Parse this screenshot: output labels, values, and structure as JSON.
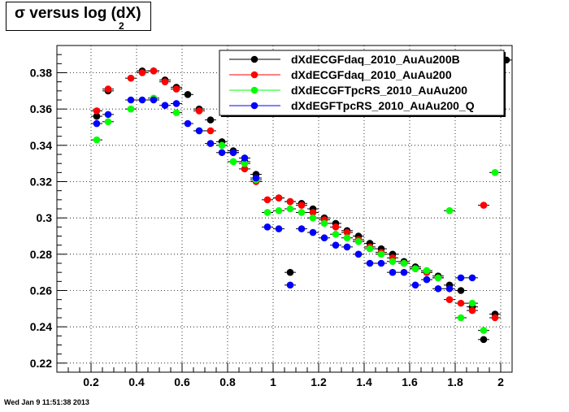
{
  "title": {
    "main": "σ versus log (dX)",
    "subscript": "2"
  },
  "timestamp": "Wed Jan  9 11:51:38 2013",
  "chart_data": {
    "type": "scatter",
    "xlim": [
      0.05,
      2.05
    ],
    "ylim": [
      0.215,
      0.395
    ],
    "xticks": [
      0.2,
      0.4,
      0.6,
      0.8,
      1,
      1.2,
      1.4,
      1.6,
      1.8,
      2
    ],
    "xtick_labels": [
      "0.2",
      "0.4",
      "0.6",
      "0.8",
      "1",
      "1.2",
      "1.4",
      "1.6",
      "1.8",
      "2"
    ],
    "yticks": [
      0.22,
      0.24,
      0.26,
      0.28,
      0.3,
      0.32,
      0.34,
      0.36,
      0.38
    ],
    "ytick_labels": [
      "0.22",
      "0.24",
      "0.26",
      "0.28",
      "0.3",
      "0.32",
      "0.34",
      "0.36",
      "0.38"
    ],
    "grid": true,
    "legend_position": "top-right",
    "series": [
      {
        "name": "dXdECGFdaq_2010_AuAu200B",
        "color": "#000000",
        "points": [
          [
            0.225,
            0.356
          ],
          [
            0.275,
            0.37
          ],
          [
            0.425,
            0.381
          ],
          [
            0.475,
            0.381
          ],
          [
            0.525,
            0.376
          ],
          [
            0.575,
            0.372
          ],
          [
            0.625,
            0.368
          ],
          [
            0.675,
            0.36
          ],
          [
            0.725,
            0.354
          ],
          [
            0.775,
            0.342
          ],
          [
            0.825,
            0.337
          ],
          [
            0.875,
            0.331
          ],
          [
            0.925,
            0.324
          ],
          [
            1.025,
            0.311
          ],
          [
            1.075,
            0.27
          ],
          [
            1.075,
            0.309
          ],
          [
            1.125,
            0.308
          ],
          [
            1.175,
            0.305
          ],
          [
            1.225,
            0.3
          ],
          [
            1.275,
            0.297
          ],
          [
            1.325,
            0.293
          ],
          [
            1.375,
            0.29
          ],
          [
            1.425,
            0.286
          ],
          [
            1.475,
            0.283
          ],
          [
            1.525,
            0.28
          ],
          [
            1.575,
            0.276
          ],
          [
            1.625,
            0.273
          ],
          [
            1.675,
            0.27
          ],
          [
            1.725,
            0.268
          ],
          [
            1.775,
            0.263
          ],
          [
            1.825,
            0.26
          ],
          [
            1.875,
            0.251
          ],
          [
            1.925,
            0.233
          ],
          [
            1.975,
            0.247
          ],
          [
            2.025,
            0.387
          ]
        ]
      },
      {
        "name": "dXdECGFdaq_2010_AuAu200",
        "color": "#ff0000",
        "points": [
          [
            0.225,
            0.359
          ],
          [
            0.275,
            0.371
          ],
          [
            0.375,
            0.377
          ],
          [
            0.425,
            0.38
          ],
          [
            0.475,
            0.381
          ],
          [
            0.525,
            0.375
          ],
          [
            0.575,
            0.371
          ],
          [
            0.675,
            0.359
          ],
          [
            0.725,
            0.348
          ],
          [
            0.825,
            0.336
          ],
          [
            0.875,
            0.327
          ],
          [
            0.925,
            0.32
          ],
          [
            0.975,
            0.31
          ],
          [
            1.025,
            0.311
          ],
          [
            1.075,
            0.309
          ],
          [
            1.125,
            0.307
          ],
          [
            1.175,
            0.303
          ],
          [
            1.225,
            0.299
          ],
          [
            1.275,
            0.295
          ],
          [
            1.325,
            0.292
          ],
          [
            1.375,
            0.288
          ],
          [
            1.425,
            0.284
          ],
          [
            1.475,
            0.281
          ],
          [
            1.525,
            0.278
          ],
          [
            1.575,
            0.275
          ],
          [
            1.625,
            0.272
          ],
          [
            1.675,
            0.27
          ],
          [
            1.725,
            0.267
          ],
          [
            1.775,
            0.255
          ],
          [
            1.825,
            0.253
          ],
          [
            1.875,
            0.249
          ],
          [
            1.925,
            0.307
          ],
          [
            1.975,
            0.245
          ]
        ]
      },
      {
        "name": "dXdECGFTpcRS_2010_AuAu200",
        "color": "#00ff00",
        "points": [
          [
            0.225,
            0.343
          ],
          [
            0.275,
            0.353
          ],
          [
            0.375,
            0.36
          ],
          [
            0.475,
            0.366
          ],
          [
            0.575,
            0.358
          ],
          [
            0.675,
            0.348
          ],
          [
            0.775,
            0.34
          ],
          [
            0.825,
            0.331
          ],
          [
            0.875,
            0.33
          ],
          [
            0.925,
            0.321
          ],
          [
            0.975,
            0.303
          ],
          [
            1.025,
            0.304
          ],
          [
            1.075,
            0.305
          ],
          [
            1.125,
            0.303
          ],
          [
            1.175,
            0.3
          ],
          [
            1.225,
            0.297
          ],
          [
            1.275,
            0.291
          ],
          [
            1.325,
            0.289
          ],
          [
            1.375,
            0.287
          ],
          [
            1.425,
            0.283
          ],
          [
            1.475,
            0.28
          ],
          [
            1.525,
            0.276
          ],
          [
            1.575,
            0.275
          ],
          [
            1.625,
            0.272
          ],
          [
            1.675,
            0.271
          ],
          [
            1.725,
            0.267
          ],
          [
            1.775,
            0.304
          ],
          [
            1.825,
            0.245
          ],
          [
            1.875,
            0.253
          ],
          [
            1.925,
            0.238
          ],
          [
            1.975,
            0.325
          ]
        ]
      },
      {
        "name": "dXdEGFTpcRS_2010_AuAu200_Q",
        "color": "#0000ff",
        "points": [
          [
            0.225,
            0.352
          ],
          [
            0.275,
            0.357
          ],
          [
            0.375,
            0.365
          ],
          [
            0.425,
            0.365
          ],
          [
            0.475,
            0.365
          ],
          [
            0.525,
            0.362
          ],
          [
            0.575,
            0.363
          ],
          [
            0.625,
            0.352
          ],
          [
            0.675,
            0.348
          ],
          [
            0.725,
            0.341
          ],
          [
            0.775,
            0.336
          ],
          [
            0.825,
            0.336
          ],
          [
            0.875,
            0.333
          ],
          [
            0.925,
            0.322
          ],
          [
            0.975,
            0.295
          ],
          [
            1.025,
            0.294
          ],
          [
            1.075,
            0.263
          ],
          [
            1.125,
            0.294
          ],
          [
            1.175,
            0.292
          ],
          [
            1.225,
            0.289
          ],
          [
            1.275,
            0.285
          ],
          [
            1.325,
            0.284
          ],
          [
            1.375,
            0.28
          ],
          [
            1.425,
            0.275
          ],
          [
            1.475,
            0.275
          ],
          [
            1.525,
            0.27
          ],
          [
            1.575,
            0.27
          ],
          [
            1.625,
            0.263
          ],
          [
            1.675,
            0.266
          ],
          [
            1.725,
            0.261
          ],
          [
            1.775,
            0.261
          ],
          [
            1.825,
            0.267
          ],
          [
            1.875,
            0.267
          ]
        ]
      }
    ]
  }
}
